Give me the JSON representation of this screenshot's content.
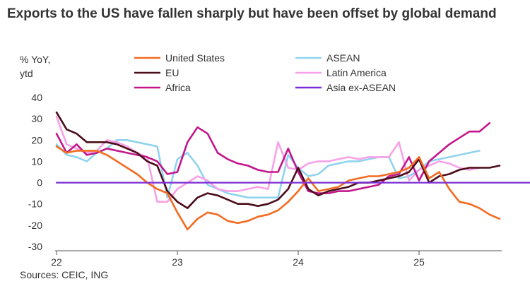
{
  "title": "Exports to the US have fallen sharply but have been offset by global demand",
  "source": "Sources: CEIC, ING",
  "chart_data": {
    "type": "line",
    "ylabel": [
      "% YoY,",
      "ytd"
    ],
    "ylim": [
      -30,
      40
    ],
    "yticks": [
      -30,
      -20,
      -10,
      0,
      10,
      20,
      30,
      40
    ],
    "xlabels": [
      "22",
      "23",
      "24",
      "25"
    ],
    "x": [
      "2022-01",
      "2022-02",
      "2022-03",
      "2022-04",
      "2022-05",
      "2022-06",
      "2022-07",
      "2022-08",
      "2022-09",
      "2022-10",
      "2022-11",
      "2022-12",
      "2023-01",
      "2023-02",
      "2023-03",
      "2023-04",
      "2023-05",
      "2023-06",
      "2023-07",
      "2023-08",
      "2023-09",
      "2023-10",
      "2023-11",
      "2023-12",
      "2024-01",
      "2024-02",
      "2024-03",
      "2024-04",
      "2024-05",
      "2024-06",
      "2024-07",
      "2024-08",
      "2024-09",
      "2024-10",
      "2024-11",
      "2024-12",
      "2025-01",
      "2025-02",
      "2025-03",
      "2025-04",
      "2025-05",
      "2025-06",
      "2025-07",
      "2025-08",
      "2025-09",
      "2025-10",
      "2025-11",
      "2025-12"
    ],
    "grid": false,
    "legend": "top",
    "series": [
      {
        "name": "United States",
        "color": "#f26b21",
        "values": [
          17,
          14,
          15,
          15,
          15,
          13,
          10,
          7,
          4,
          0,
          -3,
          -5,
          -14,
          -22,
          -17,
          -14,
          -15,
          -18,
          -19,
          -18,
          -16,
          -15,
          -13,
          -9,
          -4,
          2,
          -4,
          -3,
          -2,
          1,
          2,
          3,
          3,
          4,
          5,
          7,
          12,
          2,
          5,
          -3,
          -9,
          -10,
          -12,
          -15,
          -17,
          null,
          null,
          null
        ]
      },
      {
        "name": "EU",
        "color": "#4a0d19",
        "values": [
          33,
          25,
          23,
          19,
          19,
          19,
          18,
          16,
          14,
          10,
          8,
          -4,
          -9,
          -12,
          -7,
          -5,
          -6,
          -8,
          -10,
          -10,
          -11,
          -10,
          -8,
          -3,
          7,
          -3,
          -6,
          -4,
          -3,
          -2,
          0,
          0,
          1,
          2,
          3,
          5,
          11,
          0,
          3,
          4,
          6,
          7,
          7,
          7,
          8,
          null,
          null,
          null
        ]
      },
      {
        "name": "Africa",
        "color": "#c2168c",
        "values": [
          23,
          14,
          18,
          13,
          14,
          16,
          15,
          14,
          13,
          12,
          10,
          4,
          5,
          19,
          26,
          23,
          14,
          11,
          9,
          8,
          6,
          5,
          5,
          16,
          5,
          -4,
          -5,
          -5,
          -4,
          -4,
          -3,
          -2,
          -1,
          3,
          4,
          12,
          1,
          10,
          14,
          18,
          21,
          24,
          24,
          28,
          null,
          null,
          null,
          null
        ]
      },
      {
        "name": "ASEAN",
        "color": "#8fd3ee",
        "values": [
          18,
          13,
          12,
          10,
          14,
          16,
          20,
          20,
          19,
          18,
          17,
          -7,
          11,
          14,
          8,
          -1,
          -3,
          -5,
          -6,
          -7,
          -7,
          -7,
          -7,
          13,
          7,
          3,
          4,
          8,
          9,
          10,
          10,
          11,
          12,
          12,
          2,
          3,
          6,
          10,
          11,
          12,
          13,
          14,
          15,
          null,
          null,
          null,
          null,
          null
        ]
      },
      {
        "name": "Latin America",
        "color": "#f7a1e8",
        "values": [
          31,
          18,
          16,
          14,
          15,
          20,
          19,
          17,
          14,
          12,
          -9,
          -9,
          -3,
          0,
          3,
          1,
          -3,
          -4,
          -4,
          -3,
          -2,
          -3,
          19,
          7,
          6,
          9,
          10,
          10,
          11,
          12,
          11,
          12,
          12,
          12,
          19,
          1,
          6,
          8,
          10,
          9,
          7,
          6,
          7,
          null,
          null,
          null,
          null,
          null
        ]
      },
      {
        "name": "Asia ex-ASEAN",
        "color": "#7b2fd6",
        "values": [
          0,
          0,
          0,
          0,
          0,
          0,
          0,
          0,
          0,
          0,
          0,
          0,
          0,
          0,
          0,
          0,
          0,
          0,
          0,
          0,
          0,
          0,
          0,
          0,
          0,
          0,
          0,
          0,
          0,
          0,
          0,
          0,
          0,
          0,
          0,
          0,
          0,
          0,
          0,
          0,
          0,
          0,
          0,
          0,
          0,
          0,
          0,
          0
        ]
      }
    ]
  }
}
